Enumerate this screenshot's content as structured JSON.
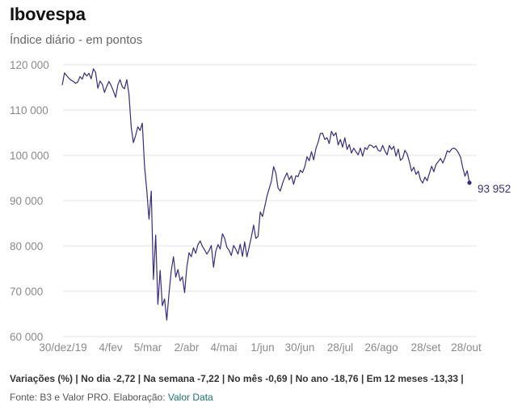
{
  "header": {
    "title": "Ibovespa",
    "subtitle": "Índice diário - em pontos"
  },
  "footer": {
    "variations": "Variações (%) | No dia -2,72 | Na semana -7,22 | No mês -0,69 | No ano -18,76 | Em 12 meses -13,33 |",
    "source_prefix": "Fonte: B3 e Valor PRO. Elaboração: ",
    "source_link": "Valor Data"
  },
  "chart_data": {
    "type": "line",
    "title": "Ibovespa",
    "subtitle": "Índice diário - em pontos",
    "xlabel": "",
    "ylabel": "",
    "ylim": [
      60000,
      120000
    ],
    "grid": true,
    "legend": "none",
    "line_color": "#3b2b7a",
    "yticks": [
      60000,
      70000,
      80000,
      90000,
      100000,
      110000,
      120000
    ],
    "ytick_labels": [
      "60 000",
      "70 000",
      "80 000",
      "90 000",
      "100 000",
      "110 000",
      "120 000"
    ],
    "xtick_labels": [
      "30/dez/19",
      "4/fev",
      "5/mar",
      "2/abr",
      "4/mai",
      "1/jun",
      "30/jun",
      "28/jul",
      "26/ago",
      "28/set",
      "28/out"
    ],
    "end_label": "93 952",
    "series": [
      {
        "values": [
          115500,
          118200,
          117600,
          117000,
          116600,
          116300,
          115900,
          116200,
          117400,
          116800,
          118200,
          117500,
          118100,
          116900,
          119100,
          118300,
          114800,
          116400,
          115700,
          113900,
          115200,
          116300,
          115400,
          114200,
          112800,
          115600,
          116700,
          115100,
          114700,
          116700,
          113500,
          106200,
          102800,
          104400,
          106300,
          105500,
          107100,
          97600,
          92200,
          85900,
          92100,
          72600,
          82400,
          67100,
          74600,
          66800,
          68300,
          63600,
          69600,
          74600,
          77600,
          73100,
          74800,
          72300,
          73200,
          69700,
          75300,
          78500,
          77600,
          79600,
          78400,
          80300,
          81100,
          79900,
          79100,
          78200,
          79000,
          80100,
          75300,
          78800,
          80300,
          79300,
          82700,
          81700,
          79700,
          79000,
          77900,
          80100,
          79300,
          78200,
          80400,
          77700,
          80900,
          77600,
          79700,
          82000,
          84600,
          81700,
          82100,
          87500,
          86500,
          88600,
          91000,
          92600,
          94300,
          97500,
          96100,
          92800,
          92100,
          93800,
          95100,
          96100,
          94600,
          95500,
          93600,
          95500,
          95300,
          96700,
          96200,
          97500,
          99700,
          98800,
          100800,
          99000,
          101500,
          102900,
          104800,
          104900,
          103500,
          103900,
          102600,
          105300,
          104300,
          105000,
          102300,
          103500,
          101800,
          103900,
          101300,
          102400,
          100500,
          101600,
          100800,
          100100,
          101600,
          99800,
          101700,
          101300,
          102300,
          102200,
          101700,
          102100,
          101100,
          100900,
          102200,
          101000,
          100100,
          102200,
          101300,
          102000,
          99800,
          101400,
          98900,
          99400,
          101100,
          100300,
          98600,
          96500,
          97400,
          95800,
          96500,
          94600,
          93900,
          95200,
          94400,
          96000,
          97600,
          96400,
          98000,
          98600,
          99300,
          98300,
          99400,
          101000,
          100700,
          101400,
          101600,
          101300,
          100600,
          99600,
          97300,
          95400,
          96600,
          93952
        ]
      }
    ]
  }
}
